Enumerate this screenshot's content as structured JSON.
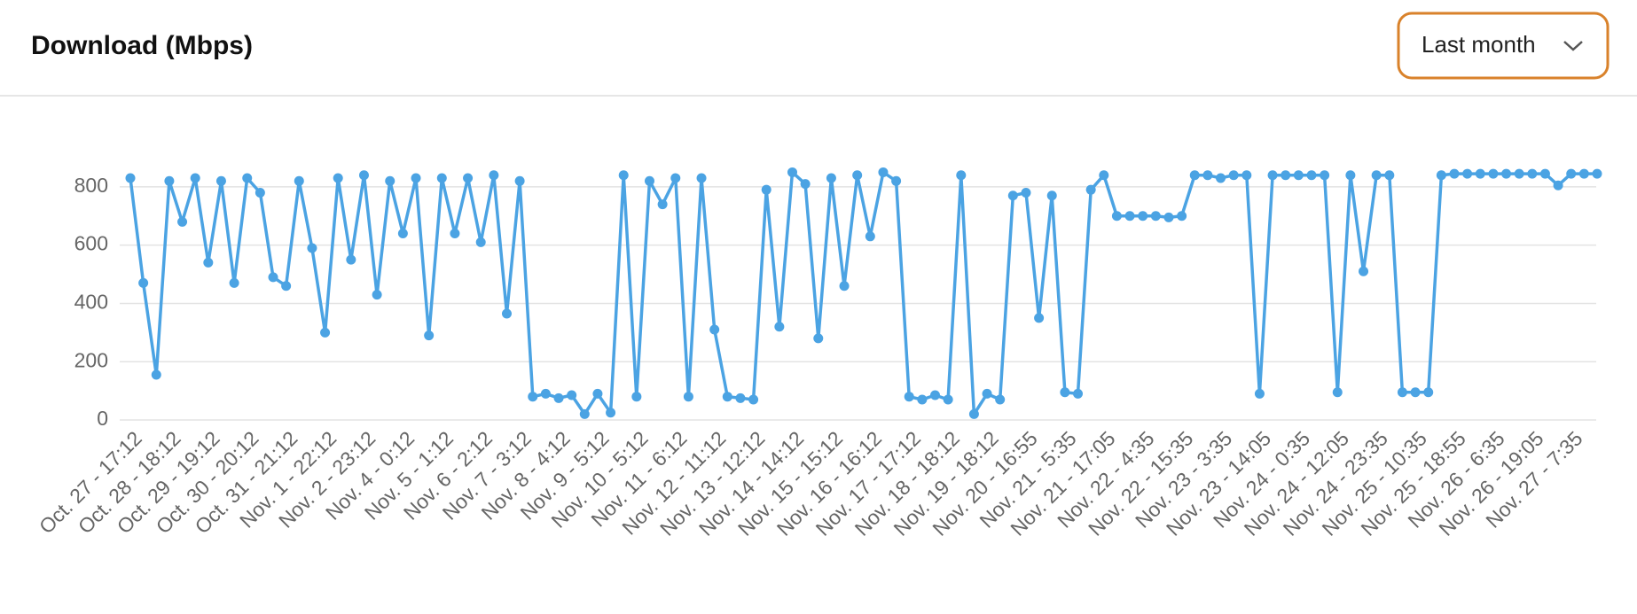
{
  "header": {
    "title": "Download (Mbps)",
    "dropdown": "Last month"
  },
  "chart_data": {
    "type": "line",
    "color": "#4ba3e3",
    "categories": [
      "Oct. 27 - 17:12",
      null,
      null,
      "Oct. 28 - 18:12",
      null,
      null,
      "Oct. 29 - 19:12",
      null,
      null,
      "Oct. 30 - 20:12",
      null,
      null,
      "Oct. 31 - 21:12",
      null,
      null,
      "Nov. 1 - 22:12",
      null,
      null,
      "Nov. 2 - 23:12",
      null,
      null,
      "Nov. 4 - 0:12",
      null,
      null,
      "Nov. 5 - 1:12",
      null,
      null,
      "Nov. 6 - 2:12",
      null,
      null,
      "Nov. 7 - 3:12",
      null,
      null,
      "Nov. 8 - 4:12",
      null,
      null,
      "Nov. 9 - 5:12",
      null,
      null,
      "Nov. 10 - 5:12",
      null,
      null,
      "Nov. 11 - 6:12",
      null,
      null,
      "Nov. 12 - 11:12",
      null,
      null,
      "Nov. 13 - 12:12",
      null,
      null,
      "Nov. 14 - 14:12",
      null,
      null,
      "Nov. 15 - 15:12",
      null,
      null,
      "Nov. 16 - 16:12",
      null,
      null,
      "Nov. 17 - 17:12",
      null,
      null,
      "Nov. 18 - 18:12",
      null,
      null,
      "Nov. 19 - 18:12",
      null,
      null,
      "Nov. 20 - 16:55",
      null,
      null,
      "Nov. 21 - 5:35",
      null,
      null,
      "Nov. 21 - 17:05",
      null,
      null,
      "Nov. 22 - 4:35",
      null,
      null,
      "Nov. 22 - 15:35",
      null,
      null,
      "Nov. 23 - 3:35",
      null,
      null,
      "Nov. 23 - 14:05",
      null,
      null,
      "Nov. 24 - 0:35",
      null,
      null,
      "Nov. 24 - 12:05",
      null,
      null,
      "Nov. 24 - 23:35",
      null,
      null,
      "Nov. 25 - 10:35",
      null,
      null,
      "Nov. 25 - 18:55",
      null,
      null,
      "Nov. 26 - 6:35",
      null,
      null,
      "Nov. 26 - 19:05",
      null,
      null,
      "Nov. 27 - 7:35",
      null,
      null
    ],
    "values": [
      830,
      470,
      155,
      820,
      680,
      830,
      540,
      820,
      470,
      830,
      780,
      490,
      460,
      820,
      590,
      300,
      830,
      550,
      840,
      430,
      820,
      640,
      830,
      290,
      830,
      640,
      830,
      610,
      840,
      365,
      820,
      80,
      90,
      75,
      85,
      20,
      90,
      25,
      840,
      80,
      820,
      740,
      830,
      80,
      830,
      310,
      80,
      75,
      70,
      790,
      320,
      850,
      810,
      280,
      830,
      460,
      840,
      630,
      850,
      820,
      80,
      70,
      85,
      70,
      840,
      20,
      90,
      70,
      770,
      780,
      350,
      770,
      95,
      90,
      790,
      840,
      700,
      700,
      700,
      700,
      695,
      700,
      840,
      840,
      830,
      840,
      840,
      90,
      840,
      840,
      840,
      840,
      840,
      95,
      840,
      510,
      840,
      840,
      95,
      95,
      95,
      840,
      845,
      845,
      845,
      845,
      845,
      845,
      845,
      845,
      805,
      845,
      845,
      845
    ],
    "ylim": [
      0,
      900
    ],
    "yticks": [
      0,
      200,
      400,
      600,
      800
    ],
    "grid": true
  }
}
